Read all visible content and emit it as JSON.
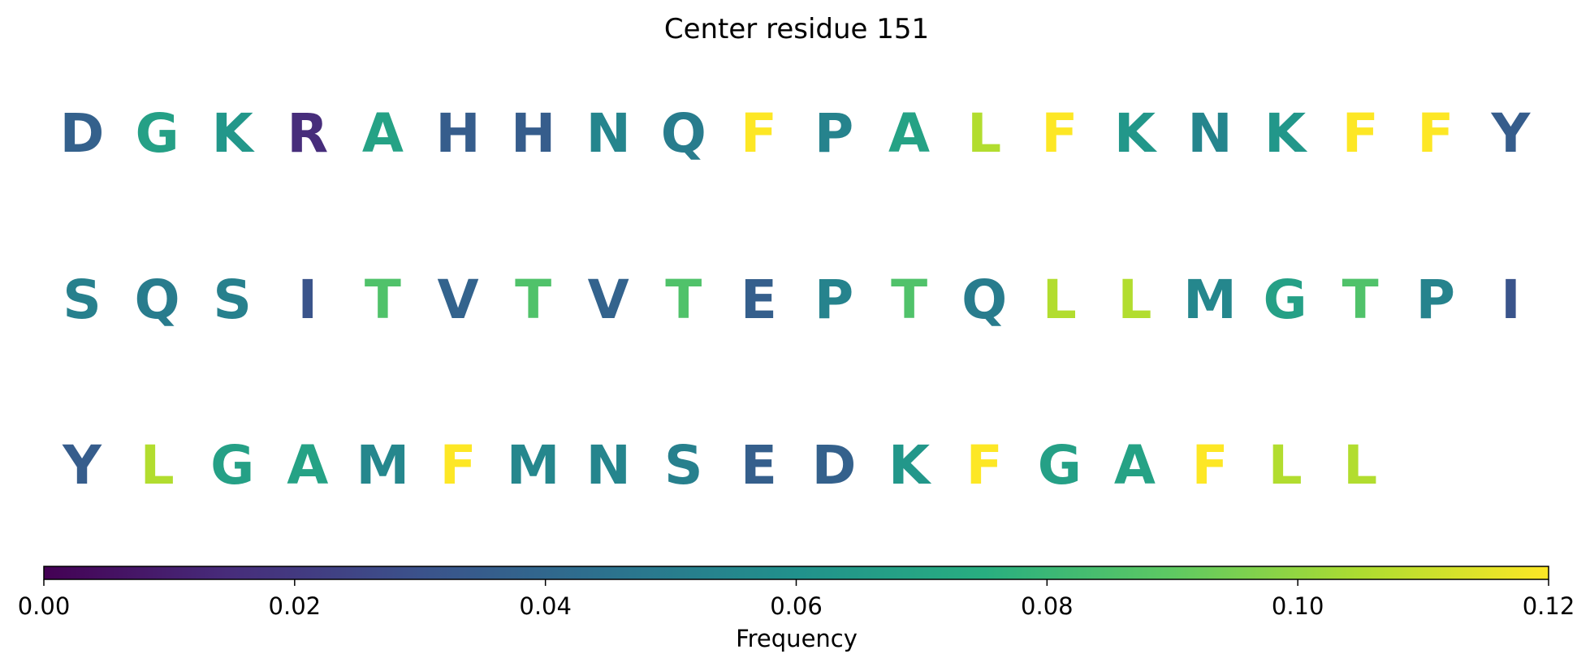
{
  "chart_data": {
    "type": "heatmap",
    "title": "Center residue 151",
    "rows": [
      {
        "letters": [
          "D",
          "G",
          "K",
          "R",
          "A",
          "H",
          "H",
          "N",
          "Q",
          "F",
          "P",
          "A",
          "L",
          "F",
          "K",
          "N",
          "K",
          "F",
          "F",
          "Y"
        ],
        "values": [
          0.037,
          0.068,
          0.063,
          0.015,
          0.069,
          0.035,
          0.035,
          0.054,
          0.05,
          0.12,
          0.053,
          0.069,
          0.106,
          0.12,
          0.063,
          0.054,
          0.063,
          0.12,
          0.12,
          0.035
        ]
      },
      {
        "letters": [
          "S",
          "Q",
          "S",
          "I",
          "T",
          "V",
          "T",
          "V",
          "T",
          "E",
          "P",
          "T",
          "Q",
          "L",
          "L",
          "M",
          "G",
          "T",
          "P",
          "I"
        ],
        "values": [
          0.052,
          0.05,
          0.052,
          0.031,
          0.086,
          0.038,
          0.086,
          0.038,
          0.086,
          0.036,
          0.053,
          0.086,
          0.05,
          0.106,
          0.106,
          0.055,
          0.068,
          0.086,
          0.053,
          0.031
        ]
      },
      {
        "letters": [
          "Y",
          "L",
          "G",
          "A",
          "M",
          "F",
          "M",
          "N",
          "S",
          "E",
          "D",
          "K",
          "F",
          "G",
          "A",
          "F",
          "L",
          "L"
        ],
        "values": [
          0.035,
          0.106,
          0.068,
          0.069,
          0.055,
          0.12,
          0.055,
          0.054,
          0.052,
          0.036,
          0.037,
          0.063,
          0.12,
          0.068,
          0.069,
          0.12,
          0.106,
          0.106
        ]
      }
    ],
    "colorbar": {
      "label": "Frequency",
      "colormap": "viridis",
      "range": [
        0.0,
        0.12
      ],
      "ticks": [
        "0.00",
        "0.02",
        "0.04",
        "0.06",
        "0.08",
        "0.10",
        "0.12"
      ]
    }
  }
}
